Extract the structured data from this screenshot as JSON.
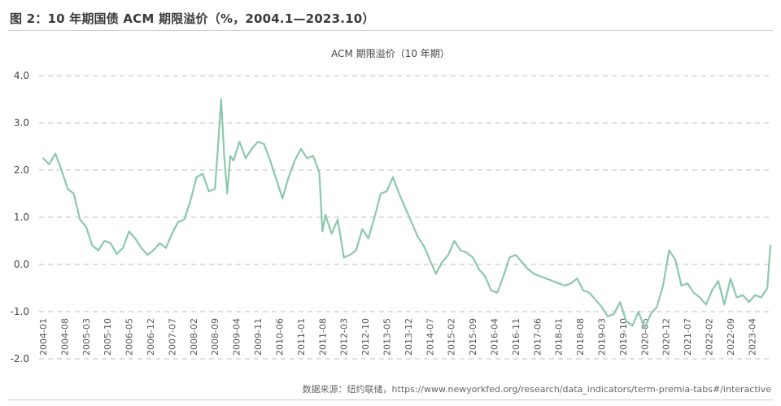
{
  "figure_title": "图 2：10 年期国债 ACM 期限溢价（%，2004.1—2023.10）",
  "source_note": "数据来源：纽约联储，https://www.newyorkfed.org/research/data_indicators/term-premia-tabs#/interactive",
  "chart_data": {
    "type": "line",
    "title": "ACM 期限溢价（10 年期）",
    "xlabel": "",
    "ylabel": "",
    "ylim": [
      -2.0,
      4.0
    ],
    "yticks": [
      "4.0",
      "3.0",
      "2.0",
      "1.0",
      "0.0",
      "-1.0",
      "-2.0"
    ],
    "grid": "horizontal dashed",
    "legend": "none",
    "line_color": "#8cc8ad",
    "x_tick_labels": [
      "2004-01",
      "2004-08",
      "2005-03",
      "2005-10",
      "2006-05",
      "2006-12",
      "2007-07",
      "2008-02",
      "2008-09",
      "2009-04",
      "2009-11",
      "2010-06",
      "2011-01",
      "2011-08",
      "2012-03",
      "2012-10",
      "2013-05",
      "2013-12",
      "2014-07",
      "2015-02",
      "2015-09",
      "2016-04",
      "2016-11",
      "2017-06",
      "2018-01",
      "2018-08",
      "2019-03",
      "2019-10",
      "2020-05",
      "2020-12",
      "2021-07",
      "2022-02",
      "2022-09",
      "2023-04"
    ],
    "series": [
      {
        "x": [
          "2004-01",
          "2004-03",
          "2004-05",
          "2004-07",
          "2004-09",
          "2004-11",
          "2005-01",
          "2005-03",
          "2005-05",
          "2005-07",
          "2005-09",
          "2005-11",
          "2006-01",
          "2006-03",
          "2006-05",
          "2006-07",
          "2006-09",
          "2006-11",
          "2007-01",
          "2007-03",
          "2007-05",
          "2007-07",
          "2007-09",
          "2007-11",
          "2008-01",
          "2008-03",
          "2008-05",
          "2008-07",
          "2008-09",
          "2008-10",
          "2008-11",
          "2008-12",
          "2009-01",
          "2009-02",
          "2009-03",
          "2009-05",
          "2009-07",
          "2009-09",
          "2009-11",
          "2010-01",
          "2010-03",
          "2010-05",
          "2010-07",
          "2010-09",
          "2010-11",
          "2011-01",
          "2011-03",
          "2011-05",
          "2011-07",
          "2011-08",
          "2011-09",
          "2011-11",
          "2012-01",
          "2012-03",
          "2012-05",
          "2012-07",
          "2012-09",
          "2012-11",
          "2013-01",
          "2013-03",
          "2013-05",
          "2013-07",
          "2013-09",
          "2013-11",
          "2014-01",
          "2014-03",
          "2014-05",
          "2014-07",
          "2014-09",
          "2014-11",
          "2015-01",
          "2015-03",
          "2015-05",
          "2015-07",
          "2015-09",
          "2015-11",
          "2016-01",
          "2016-03",
          "2016-05",
          "2016-07",
          "2016-09",
          "2016-11",
          "2017-01",
          "2017-03",
          "2017-05",
          "2017-07",
          "2017-09",
          "2017-11",
          "2018-01",
          "2018-03",
          "2018-05",
          "2018-07",
          "2018-09",
          "2018-11",
          "2019-01",
          "2019-03",
          "2019-05",
          "2019-07",
          "2019-09",
          "2019-11",
          "2020-01",
          "2020-03",
          "2020-05",
          "2020-07",
          "2020-09",
          "2020-11",
          "2021-01",
          "2021-03",
          "2021-05",
          "2021-07",
          "2021-09",
          "2021-11",
          "2022-01",
          "2022-03",
          "2022-05",
          "2022-07",
          "2022-09",
          "2022-11",
          "2023-01",
          "2023-03",
          "2023-05",
          "2023-07",
          "2023-09",
          "2023-10"
        ],
        "y": [
          2.25,
          2.12,
          2.35,
          2.0,
          1.6,
          1.5,
          0.95,
          0.8,
          0.4,
          0.3,
          0.5,
          0.45,
          0.22,
          0.35,
          0.7,
          0.55,
          0.35,
          0.2,
          0.3,
          0.45,
          0.35,
          0.65,
          0.9,
          0.95,
          1.35,
          1.85,
          1.92,
          1.55,
          1.6,
          2.5,
          3.5,
          2.3,
          1.5,
          2.3,
          2.2,
          2.6,
          2.25,
          2.45,
          2.6,
          2.55,
          2.2,
          1.8,
          1.4,
          1.85,
          2.2,
          2.45,
          2.25,
          2.3,
          1.95,
          0.7,
          1.05,
          0.65,
          0.95,
          0.15,
          0.2,
          0.3,
          0.75,
          0.55,
          1.0,
          1.5,
          1.55,
          1.85,
          1.5,
          1.2,
          0.9,
          0.6,
          0.4,
          0.1,
          -0.2,
          0.05,
          0.2,
          0.5,
          0.3,
          0.25,
          0.15,
          -0.1,
          -0.25,
          -0.55,
          -0.6,
          -0.25,
          0.15,
          0.2,
          0.05,
          -0.1,
          -0.2,
          -0.25,
          -0.3,
          -0.35,
          -0.4,
          -0.45,
          -0.4,
          -0.3,
          -0.55,
          -0.6,
          -0.75,
          -0.9,
          -1.1,
          -1.05,
          -0.8,
          -1.2,
          -1.3,
          -1.0,
          -1.35,
          -1.05,
          -0.9,
          -0.45,
          0.3,
          0.1,
          -0.45,
          -0.4,
          -0.6,
          -0.7,
          -0.85,
          -0.55,
          -0.35,
          -0.85,
          -0.3,
          -0.7,
          -0.65,
          -0.8,
          -0.65,
          -0.7,
          -0.5,
          0.4
        ]
      }
    ]
  }
}
